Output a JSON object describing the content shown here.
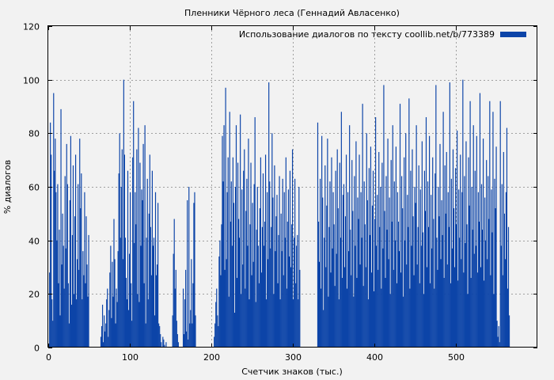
{
  "chart_data": {
    "type": "bar",
    "title": "Пленники Чёрного леса (Геннадий Авласенко)",
    "xlabel": "Счетчик знаков (тыс.)",
    "ylabel": "% диалогов",
    "xlim": [
      0,
      600
    ],
    "ylim": [
      0,
      120
    ],
    "xticks": [
      0,
      100,
      200,
      300,
      400,
      500
    ],
    "yticks": [
      0,
      20,
      40,
      60,
      80,
      100,
      120
    ],
    "grid": true,
    "legend_position": "top-right",
    "series": [
      {
        "name": "Использование диалогов по тексту coollib.net/b/773389",
        "color": "#0c44a8",
        "x_start": 0,
        "x_step": 1,
        "values": [
          0,
          28,
          84,
          72,
          18,
          10,
          95,
          66,
          78,
          58,
          40,
          61,
          24,
          44,
          12,
          89,
          31,
          50,
          38,
          22,
          64,
          37,
          76,
          61,
          24,
          9,
          55,
          79,
          16,
          42,
          68,
          20,
          49,
          72,
          18,
          33,
          61,
          29,
          78,
          52,
          65,
          18,
          36,
          27,
          58,
          24,
          49,
          31,
          19,
          42,
          0,
          0,
          0,
          0,
          0,
          0,
          0,
          0,
          0,
          0,
          0,
          0,
          0,
          0,
          4,
          8,
          16,
          2,
          12,
          6,
          9,
          18,
          22,
          4,
          14,
          28,
          38,
          11,
          32,
          19,
          48,
          33,
          9,
          22,
          17,
          36,
          65,
          80,
          41,
          60,
          74,
          33,
          100,
          72,
          41,
          26,
          18,
          66,
          14,
          35,
          58,
          24,
          10,
          71,
          92,
          39,
          58,
          46,
          74,
          20,
          82,
          17,
          69,
          38,
          59,
          55,
          76,
          24,
          83,
          9,
          41,
          63,
          18,
          50,
          72,
          45,
          27,
          66,
          38,
          41,
          12,
          58,
          27,
          31,
          54,
          9,
          8,
          5,
          2,
          0,
          4,
          3,
          1,
          0,
          2,
          0,
          0,
          0,
          0,
          0,
          0,
          0,
          12,
          35,
          48,
          22,
          29,
          10,
          5,
          2,
          0,
          0,
          0,
          0,
          0,
          22,
          5,
          18,
          29,
          6,
          55,
          3,
          60,
          9,
          14,
          33,
          9,
          24,
          54,
          58,
          12,
          0,
          0,
          0,
          0,
          0,
          0,
          0,
          0,
          0,
          0,
          0,
          0,
          0,
          0,
          0,
          0,
          0,
          0,
          0,
          0,
          0,
          0,
          4,
          9,
          17,
          22,
          12,
          8,
          34,
          40,
          27,
          46,
          79,
          62,
          83,
          29,
          97,
          33,
          58,
          71,
          19,
          88,
          47,
          62,
          38,
          71,
          54,
          13,
          60,
          83,
          26,
          69,
          48,
          41,
          87,
          20,
          59,
          31,
          66,
          74,
          22,
          51,
          63,
          38,
          78,
          18,
          46,
          69,
          27,
          54,
          32,
          61,
          86,
          17,
          44,
          60,
          38,
          24,
          52,
          71,
          28,
          45,
          65,
          38,
          47,
          72,
          18,
          58,
          33,
          99,
          62,
          37,
          45,
          80,
          56,
          20,
          68,
          36,
          49,
          57,
          24,
          42,
          64,
          18,
          50,
          36,
          63,
          27,
          58,
          41,
          71,
          22,
          47,
          59,
          34,
          66,
          30,
          46,
          74,
          18,
          41,
          63,
          24,
          38,
          42,
          18,
          60,
          29,
          0,
          0,
          0,
          0,
          0,
          0,
          0,
          0,
          0,
          0,
          0,
          0,
          0,
          0,
          0,
          0,
          0,
          0,
          0,
          0,
          0,
          84,
          47,
          32,
          63,
          22,
          79,
          56,
          14,
          41,
          68,
          30,
          53,
          78,
          19,
          45,
          62,
          28,
          71,
          37,
          58,
          46,
          23,
          66,
          35,
          74,
          52,
          18,
          69,
          41,
          88,
          26,
          57,
          61,
          30,
          49,
          72,
          22,
          58,
          36,
          83,
          44,
          27,
          70,
          51,
          19,
          64,
          38,
          77,
          26,
          56,
          48,
          72,
          31,
          58,
          41,
          91,
          23,
          62,
          46,
          30,
          80,
          55,
          18,
          67,
          42,
          75,
          28,
          53,
          66,
          21,
          48,
          86,
          38,
          57,
          29,
          73,
          45,
          60,
          22,
          69,
          37,
          98,
          51,
          26,
          64,
          44,
          78,
          33,
          56,
          20,
          70,
          47,
          83,
          29,
          62,
          40,
          75,
          24,
          58,
          47,
          36,
          91,
          28,
          64,
          52,
          19,
          71,
          40,
          80,
          31,
          57,
          45,
          93,
          22,
          66,
          38,
          74,
          49,
          27,
          60,
          54,
          83,
          31,
          45,
          68,
          24,
          59,
          38,
          77,
          43,
          20,
          66,
          51,
          86,
          30,
          62,
          45,
          79,
          24,
          57,
          37,
          71,
          48,
          22,
          65,
          98,
          41,
          29,
          60,
          49,
          76,
          33,
          55,
          42,
          88,
          26,
          68,
          50,
          73,
          31,
          58,
          45,
          99,
          24,
          63,
          37,
          74,
          52,
          30,
          67,
          46,
          81,
          25,
          59,
          41,
          72,
          33,
          58,
          100,
          28,
          64,
          39,
          77,
          46,
          20,
          71,
          53,
          92,
          26,
          60,
          44,
          83,
          35,
          66,
          38,
          79,
          28,
          58,
          47,
          95,
          30,
          61,
          44,
          78,
          25,
          56,
          40,
          70,
          33,
          64,
          48,
          92,
          27,
          59,
          43,
          88,
          20,
          63,
          52,
          75,
          10,
          4,
          8,
          2,
          92,
          38,
          61,
          27,
          73,
          50,
          33,
          58,
          82,
          22,
          45,
          12
        ]
      }
    ]
  }
}
